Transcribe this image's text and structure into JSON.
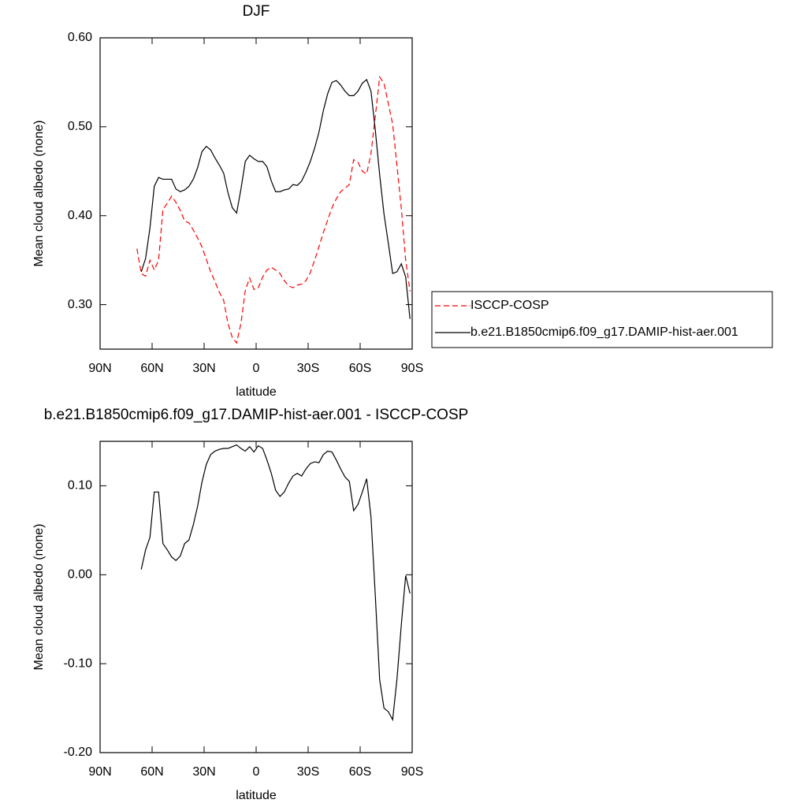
{
  "chart_data": [
    {
      "type": "line",
      "title": "DJF",
      "xlabel": "latitude",
      "ylabel": "Mean cloud albedo (none)",
      "x": [
        68.75,
        66.25,
        63.75,
        61.25,
        58.75,
        56.25,
        53.75,
        51.25,
        48.75,
        46.25,
        43.75,
        41.25,
        38.75,
        36.25,
        33.75,
        31.25,
        28.75,
        26.25,
        23.75,
        21.25,
        18.75,
        16.25,
        13.75,
        11.25,
        8.75,
        6.25,
        3.75,
        1.25,
        -1.25,
        -3.75,
        -6.25,
        -8.75,
        -11.25,
        -13.75,
        -16.25,
        -18.75,
        -21.25,
        -23.75,
        -26.25,
        -28.75,
        -31.25,
        -33.75,
        -36.25,
        -38.75,
        -41.25,
        -43.75,
        -46.25,
        -48.75,
        -51.25,
        -53.75,
        -56.25,
        -58.75,
        -61.25,
        -63.75,
        -66.25,
        -68.75,
        -71.25,
        -73.75,
        -76.25,
        -78.75,
        -81.25,
        -83.75,
        -86.25,
        -88.75
      ],
      "series": [
        {
          "name": "ISCCP-COSP",
          "color": "#ff0000",
          "line_style": "dashed",
          "values": [
            0.363,
            0.335,
            0.332,
            0.35,
            0.339,
            0.35,
            0.407,
            0.414,
            0.422,
            0.415,
            0.406,
            0.394,
            0.392,
            0.384,
            0.375,
            0.365,
            0.351,
            0.337,
            0.326,
            0.314,
            0.305,
            0.279,
            0.263,
            0.257,
            0.279,
            0.316,
            0.33,
            0.317,
            0.319,
            0.331,
            0.339,
            0.342,
            0.339,
            0.335,
            0.327,
            0.321,
            0.319,
            0.322,
            0.323,
            0.327,
            0.336,
            0.35,
            0.365,
            0.381,
            0.395,
            0.409,
            0.419,
            0.427,
            0.431,
            0.435,
            0.463,
            0.46,
            0.45,
            0.447,
            0.47,
            0.512,
            0.556,
            0.549,
            0.526,
            0.503,
            0.456,
            0.408,
            0.35,
            0.315
          ]
        },
        {
          "name": "b.e21.B1850cmip6.f09_g17.DAMIP-hist-aer.001",
          "color": "#000000",
          "line_style": "solid",
          "values": [
            null,
            0.337,
            0.352,
            0.386,
            0.433,
            0.443,
            0.441,
            0.441,
            0.441,
            0.43,
            0.427,
            0.429,
            0.433,
            0.441,
            0.454,
            0.472,
            0.478,
            0.474,
            0.465,
            0.457,
            0.448,
            0.426,
            0.409,
            0.403,
            0.43,
            0.461,
            0.468,
            0.464,
            0.461,
            0.461,
            0.455,
            0.439,
            0.427,
            0.427,
            0.429,
            0.43,
            0.435,
            0.434,
            0.439,
            0.449,
            0.461,
            0.476,
            0.494,
            0.518,
            0.537,
            0.55,
            0.552,
            0.547,
            0.54,
            0.535,
            0.535,
            0.54,
            0.549,
            0.553,
            0.54,
            0.496,
            0.446,
            0.402,
            0.369,
            0.335,
            0.337,
            0.346,
            0.331,
            0.284
          ]
        }
      ],
      "xlim": [
        90,
        -90
      ],
      "xticks": [
        {
          "value": 90,
          "label": "90N"
        },
        {
          "value": 60,
          "label": "60N"
        },
        {
          "value": 30,
          "label": "30N"
        },
        0,
        {
          "value": -30,
          "label": "30S"
        },
        {
          "value": -60,
          "label": "60S"
        },
        {
          "value": -90,
          "label": "90S"
        }
      ],
      "ylim": [
        0.25,
        0.6
      ],
      "yticks": [
        {
          "value": 0.3,
          "label": "0.30"
        },
        {
          "value": 0.4,
          "label": "0.40"
        },
        {
          "value": 0.5,
          "label": "0.50"
        },
        {
          "value": 0.6,
          "label": "0.60"
        }
      ],
      "legend": "outside-right",
      "grid": false
    },
    {
      "type": "line",
      "title": "b.e21.B1850cmip6.f09_g17.DAMIP-hist-aer.001 - ISCCP-COSP",
      "xlabel": "latitude",
      "ylabel": "Mean cloud albedo (none)",
      "x": [
        66.25,
        63.75,
        61.25,
        58.75,
        56.25,
        53.75,
        51.25,
        48.75,
        46.25,
        43.75,
        41.25,
        38.75,
        36.25,
        33.75,
        31.25,
        28.75,
        26.25,
        23.75,
        21.25,
        18.75,
        16.25,
        13.75,
        11.25,
        8.75,
        6.25,
        3.75,
        1.25,
        -1.25,
        -3.75,
        -6.25,
        -8.75,
        -11.25,
        -13.75,
        -16.25,
        -18.75,
        -21.25,
        -23.75,
        -26.25,
        -28.75,
        -31.25,
        -33.75,
        -36.25,
        -38.75,
        -41.25,
        -43.75,
        -46.25,
        -48.75,
        -51.25,
        -53.75,
        -56.25,
        -58.75,
        -61.25,
        -63.75,
        -66.25,
        -68.75,
        -71.25,
        -73.75,
        -76.25,
        -78.75,
        -81.25,
        -83.75,
        -86.25,
        -88.75
      ],
      "series": [
        {
          "color": "#000000",
          "line_style": "solid",
          "values": [
            0.006,
            0.028,
            0.042,
            0.093,
            0.093,
            0.035,
            0.028,
            0.02,
            0.016,
            0.021,
            0.035,
            0.039,
            0.056,
            0.077,
            0.104,
            0.124,
            0.135,
            0.139,
            0.141,
            0.142,
            0.142,
            0.144,
            0.146,
            0.142,
            0.139,
            0.144,
            0.138,
            0.145,
            0.142,
            0.129,
            0.114,
            0.095,
            0.088,
            0.093,
            0.103,
            0.111,
            0.114,
            0.111,
            0.119,
            0.125,
            0.127,
            0.126,
            0.135,
            0.139,
            0.138,
            0.129,
            0.119,
            0.11,
            0.105,
            0.072,
            0.079,
            0.093,
            0.108,
            0.065,
            -0.024,
            -0.118,
            -0.15,
            -0.154,
            -0.163,
            -0.117,
            -0.056,
            -0.001,
            -0.021
          ]
        }
      ],
      "xlim": [
        90,
        -90
      ],
      "xticks": [
        {
          "value": 90,
          "label": "90N"
        },
        {
          "value": 60,
          "label": "60N"
        },
        {
          "value": 30,
          "label": "30N"
        },
        0,
        {
          "value": -30,
          "label": "30S"
        },
        {
          "value": -60,
          "label": "60S"
        },
        {
          "value": -90,
          "label": "90S"
        }
      ],
      "ylim": [
        -0.2,
        0.15
      ],
      "yticks": [
        {
          "value": -0.2,
          "label": "-0.20"
        },
        {
          "value": -0.1,
          "label": "-0.10"
        },
        {
          "value": 0.0,
          "label": "0.00"
        },
        {
          "value": 0.1,
          "label": "0.10"
        }
      ],
      "grid": false
    }
  ]
}
